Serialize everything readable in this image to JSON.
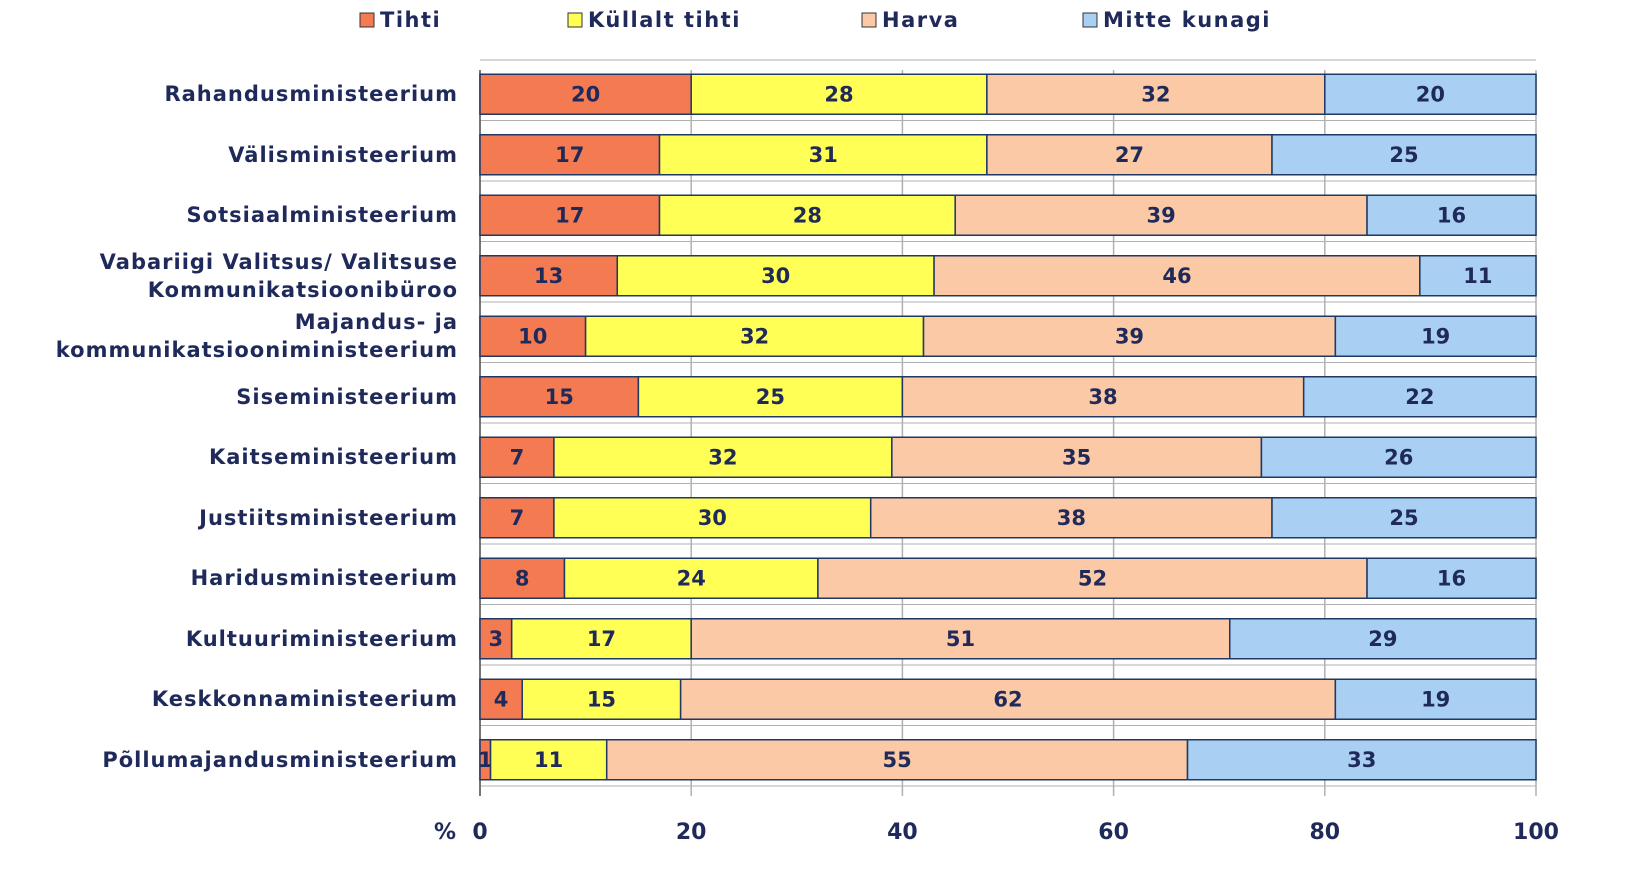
{
  "chart_data": {
    "type": "stacked-barh",
    "categories": [
      "Rahandusministeerium",
      "Välisministeerium",
      "Sotsiaalministeerium",
      "Vabariigi Valitsus/ Valitsuse\nKommunikatsioonibüroo",
      "Majandus- ja\nkommunikatsiooniministeerium",
      "Siseministeerium",
      "Kaitseministeerium",
      "Justiitsministeerium",
      "Haridusministeerium",
      "Kultuuriministeerium",
      "Keskkonnaministeerium",
      "Põllumajandusministeerium"
    ],
    "series": [
      {
        "name": "Tihti",
        "color": "#f47a52",
        "values": [
          20,
          17,
          17,
          13,
          10,
          15,
          7,
          7,
          8,
          3,
          4,
          1
        ]
      },
      {
        "name": "Küllalt tihti",
        "color": "#ffff55",
        "values": [
          28,
          31,
          28,
          30,
          32,
          25,
          32,
          30,
          24,
          17,
          15,
          11
        ]
      },
      {
        "name": "Harva",
        "color": "#fbc9a5",
        "values": [
          32,
          27,
          39,
          46,
          39,
          38,
          35,
          38,
          52,
          51,
          62,
          55
        ]
      },
      {
        "name": "Mitte kunagi",
        "color": "#a9cff3",
        "values": [
          20,
          25,
          16,
          11,
          19,
          22,
          26,
          25,
          16,
          29,
          19,
          33
        ]
      }
    ],
    "xlabel": "%",
    "xlim": [
      0,
      100
    ],
    "xticks": [
      0,
      20,
      40,
      60,
      80,
      100
    ],
    "grid": true,
    "legend": "top"
  }
}
